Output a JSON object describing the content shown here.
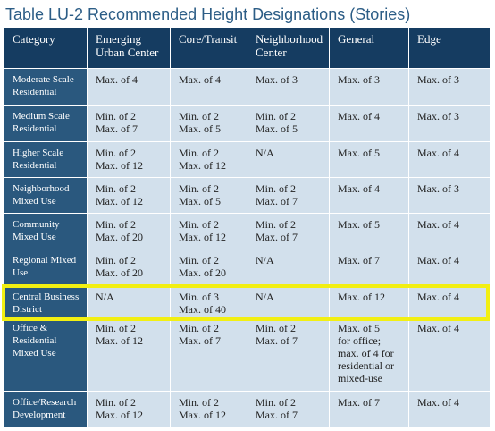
{
  "title": "Table LU-2 Recommended Height Designations (Stories)",
  "accent_colors": {
    "header": "#153c61",
    "row_header": "#2a587e",
    "cell": "#d2e0ec",
    "highlight": "#f2ef12"
  },
  "columns": [
    [
      "Category"
    ],
    [
      "Emerging",
      "Urban Center"
    ],
    [
      "Core/Transit"
    ],
    [
      "Neighborhood",
      "Center"
    ],
    [
      "General"
    ],
    [
      "Edge"
    ]
  ],
  "rows": [
    {
      "category": [
        "Moderate Scale",
        "Residential"
      ],
      "cells": [
        [
          "Max. of 4"
        ],
        [
          "Max. of 4"
        ],
        [
          "Max. of 3"
        ],
        [
          "Max. of 3"
        ],
        [
          "Max. of 3"
        ]
      ]
    },
    {
      "category": [
        "Medium Scale",
        "Residential"
      ],
      "cells": [
        [
          "Min. of 2",
          "Max. of 7"
        ],
        [
          "Min. of 2",
          "Max. of 5"
        ],
        [
          "Min. of 2",
          "Max. of 5"
        ],
        [
          "Max. of 4"
        ],
        [
          "Max. of 3"
        ]
      ]
    },
    {
      "category": [
        "Higher Scale",
        "Residential"
      ],
      "cells": [
        [
          "Min. of 2",
          "Max. of 12"
        ],
        [
          "Min. of 2",
          "Max. of 12"
        ],
        [
          "N/A"
        ],
        [
          "Max. of 5"
        ],
        [
          "Max. of 4"
        ]
      ]
    },
    {
      "category": [
        "Neighborhood",
        "Mixed Use"
      ],
      "cells": [
        [
          "Min. of 2",
          "Max. of 12"
        ],
        [
          "Min. of 2",
          "Max. of 5"
        ],
        [
          "Min. of 2",
          "Max. of 7"
        ],
        [
          "Max. of 4"
        ],
        [
          "Max. of 3"
        ]
      ]
    },
    {
      "category": [
        "Community",
        "Mixed Use"
      ],
      "cells": [
        [
          "Min. of 2",
          "Max. of 20"
        ],
        [
          "Min. of 2",
          "Max. of 12"
        ],
        [
          "Min. of 2",
          "Max. of 7"
        ],
        [
          "Max. of 5"
        ],
        [
          "Max. of 4"
        ]
      ]
    },
    {
      "category": [
        "Regional Mixed",
        "Use"
      ],
      "cells": [
        [
          "Min. of 2",
          "Max. of 20"
        ],
        [
          "Min. of 2",
          "Max. of 20"
        ],
        [
          "N/A"
        ],
        [
          "Max. of 7"
        ],
        [
          "Max. of 4"
        ]
      ]
    },
    {
      "category": [
        "Central Business",
        "District"
      ],
      "highlighted": true,
      "cells": [
        [
          "N/A"
        ],
        [
          "Min. of 3",
          "Max. of 40"
        ],
        [
          "N/A"
        ],
        [
          "Max. of 12"
        ],
        [
          "Max. of 4"
        ]
      ]
    },
    {
      "category": [
        "Office &",
        "Residential",
        "Mixed Use"
      ],
      "cells": [
        [
          "Min. of 2",
          "Max. of 12"
        ],
        [
          "Min. of 2",
          "Max. of 7"
        ],
        [
          "Min. of 2",
          "Max. of 7"
        ],
        [
          "Max. of 5",
          "for office;",
          "max. of 4 for",
          "residential or",
          "mixed-use"
        ],
        [
          "Max. of 4"
        ]
      ]
    },
    {
      "category": [
        "Office/Research",
        "Development"
      ],
      "cells": [
        [
          "Min. of 2",
          "Max. of 12"
        ],
        [
          "Min. of 2",
          "Max. of 12"
        ],
        [
          "Min. of 2",
          "Max. of 7"
        ],
        [
          "Max. of 7"
        ],
        [
          "Max. of 4"
        ]
      ]
    }
  ]
}
